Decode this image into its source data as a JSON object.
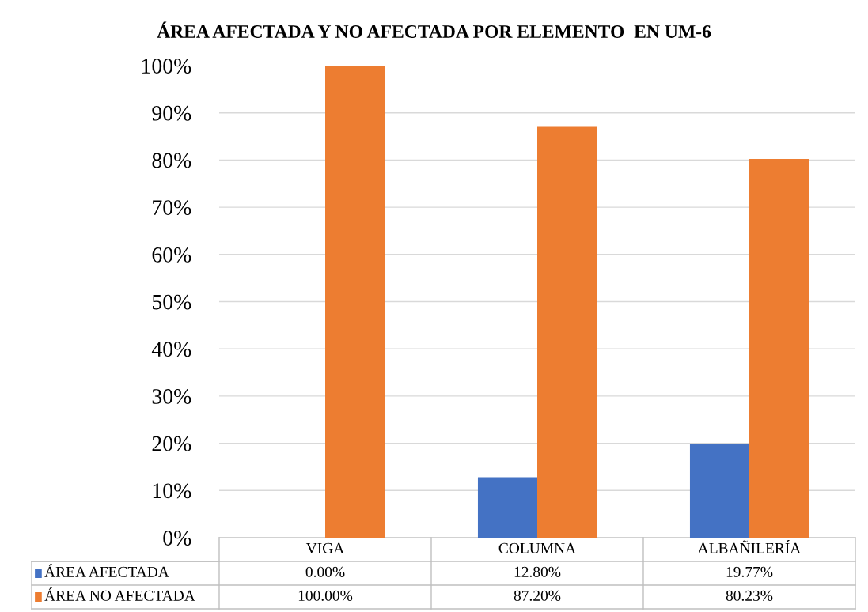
{
  "chart_data": {
    "type": "bar",
    "title": "ÁREA AFECTADA Y NO AFECTADA POR ELEMENTO  EN UM-6",
    "categories": [
      "VIGA",
      "COLUMNA",
      "ALBAÑILERÍA"
    ],
    "series": [
      {
        "name": "ÁREA AFECTADA",
        "color": "#4472c4",
        "values": [
          0,
          12.8,
          19.77
        ],
        "value_labels": [
          "0.00%",
          "12.80%",
          "19.77%"
        ]
      },
      {
        "name": "ÁREA NO AFECTADA",
        "color": "#ed7d31",
        "values": [
          100,
          87.2,
          80.23
        ],
        "value_labels": [
          "100.00%",
          "87.20%",
          "80.23%"
        ]
      }
    ],
    "ylim": [
      0,
      100
    ],
    "yticks": [
      {
        "value": 0,
        "label": "0%"
      },
      {
        "value": 10,
        "label": "10%"
      },
      {
        "value": 20,
        "label": "20%"
      },
      {
        "value": 30,
        "label": "30%"
      },
      {
        "value": 40,
        "label": "40%"
      },
      {
        "value": 50,
        "label": "50%"
      },
      {
        "value": 60,
        "label": "60%"
      },
      {
        "value": 70,
        "label": "70%"
      },
      {
        "value": 80,
        "label": "80%"
      },
      {
        "value": 90,
        "label": "90%"
      },
      {
        "value": 100,
        "label": "100%"
      }
    ],
    "grid": "y",
    "legend": "bottom"
  }
}
